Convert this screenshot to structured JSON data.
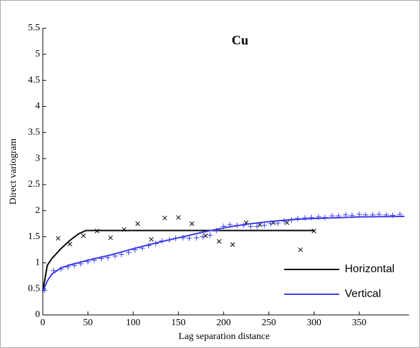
{
  "chart_data": {
    "type": "line",
    "title": "Cu",
    "x_label": "Lag separation distance",
    "y_label": "Direct variogram",
    "xlim": [
      0,
      405
    ],
    "ylim": [
      0,
      5.5
    ],
    "xticks": [
      0,
      50,
      100,
      150,
      200,
      250,
      300,
      350
    ],
    "yticks": [
      0,
      0.5,
      1,
      1.5,
      2,
      2.5,
      3,
      3.5,
      4,
      4.5,
      5,
      5.5
    ],
    "legend": "lower right",
    "series": [
      {
        "name": "Horizontal",
        "color": "#000000",
        "marker": "x",
        "x": [
          0,
          5,
          10,
          20,
          30,
          40,
          48,
          300
        ],
        "values": [
          0.45,
          0.95,
          1.08,
          1.27,
          1.43,
          1.56,
          1.62,
          1.62
        ],
        "points_x": [
          17,
          30,
          45,
          60,
          75,
          90,
          105,
          120,
          135,
          150,
          165,
          180,
          195,
          210,
          225,
          240,
          255,
          270,
          285,
          300
        ],
        "points_values": [
          1.47,
          1.36,
          1.52,
          1.61,
          1.48,
          1.64,
          1.75,
          1.45,
          1.86,
          1.87,
          1.75,
          1.52,
          1.41,
          1.35,
          1.77,
          1.73,
          1.77,
          1.77,
          1.25,
          1.61
        ]
      },
      {
        "name": "Vertical",
        "color": "#3a3ae8",
        "marker": "+",
        "x": [
          0,
          5,
          10,
          20,
          30,
          50,
          75,
          100,
          125,
          150,
          175,
          200,
          225,
          250,
          275,
          300,
          350,
          400
        ],
        "values": [
          0.45,
          0.65,
          0.78,
          0.9,
          0.96,
          1.05,
          1.15,
          1.27,
          1.38,
          1.48,
          1.58,
          1.67,
          1.74,
          1.79,
          1.83,
          1.85,
          1.88,
          1.89
        ],
        "points_x": [
          2,
          12,
          20,
          28,
          35,
          42,
          50,
          57,
          65,
          72,
          80,
          87,
          95,
          102,
          110,
          117,
          125,
          132,
          140,
          147,
          155,
          162,
          170,
          177,
          185,
          192,
          200,
          207,
          215,
          222,
          230,
          237,
          245,
          252,
          260,
          267,
          275,
          282,
          290,
          297,
          305,
          312,
          320,
          327,
          335,
          342,
          350,
          357,
          365,
          372,
          380,
          387,
          395
        ],
        "points_values": [
          0.47,
          0.85,
          0.88,
          0.92,
          0.95,
          0.98,
          1.02,
          1.05,
          1.08,
          1.1,
          1.13,
          1.16,
          1.2,
          1.25,
          1.28,
          1.33,
          1.37,
          1.42,
          1.44,
          1.47,
          1.48,
          1.47,
          1.48,
          1.5,
          1.53,
          1.62,
          1.7,
          1.73,
          1.72,
          1.72,
          1.7,
          1.7,
          1.72,
          1.75,
          1.76,
          1.8,
          1.82,
          1.85,
          1.86,
          1.87,
          1.88,
          1.87,
          1.9,
          1.9,
          1.92,
          1.91,
          1.93,
          1.92,
          1.92,
          1.93,
          1.92,
          1.91,
          1.93
        ]
      }
    ]
  }
}
